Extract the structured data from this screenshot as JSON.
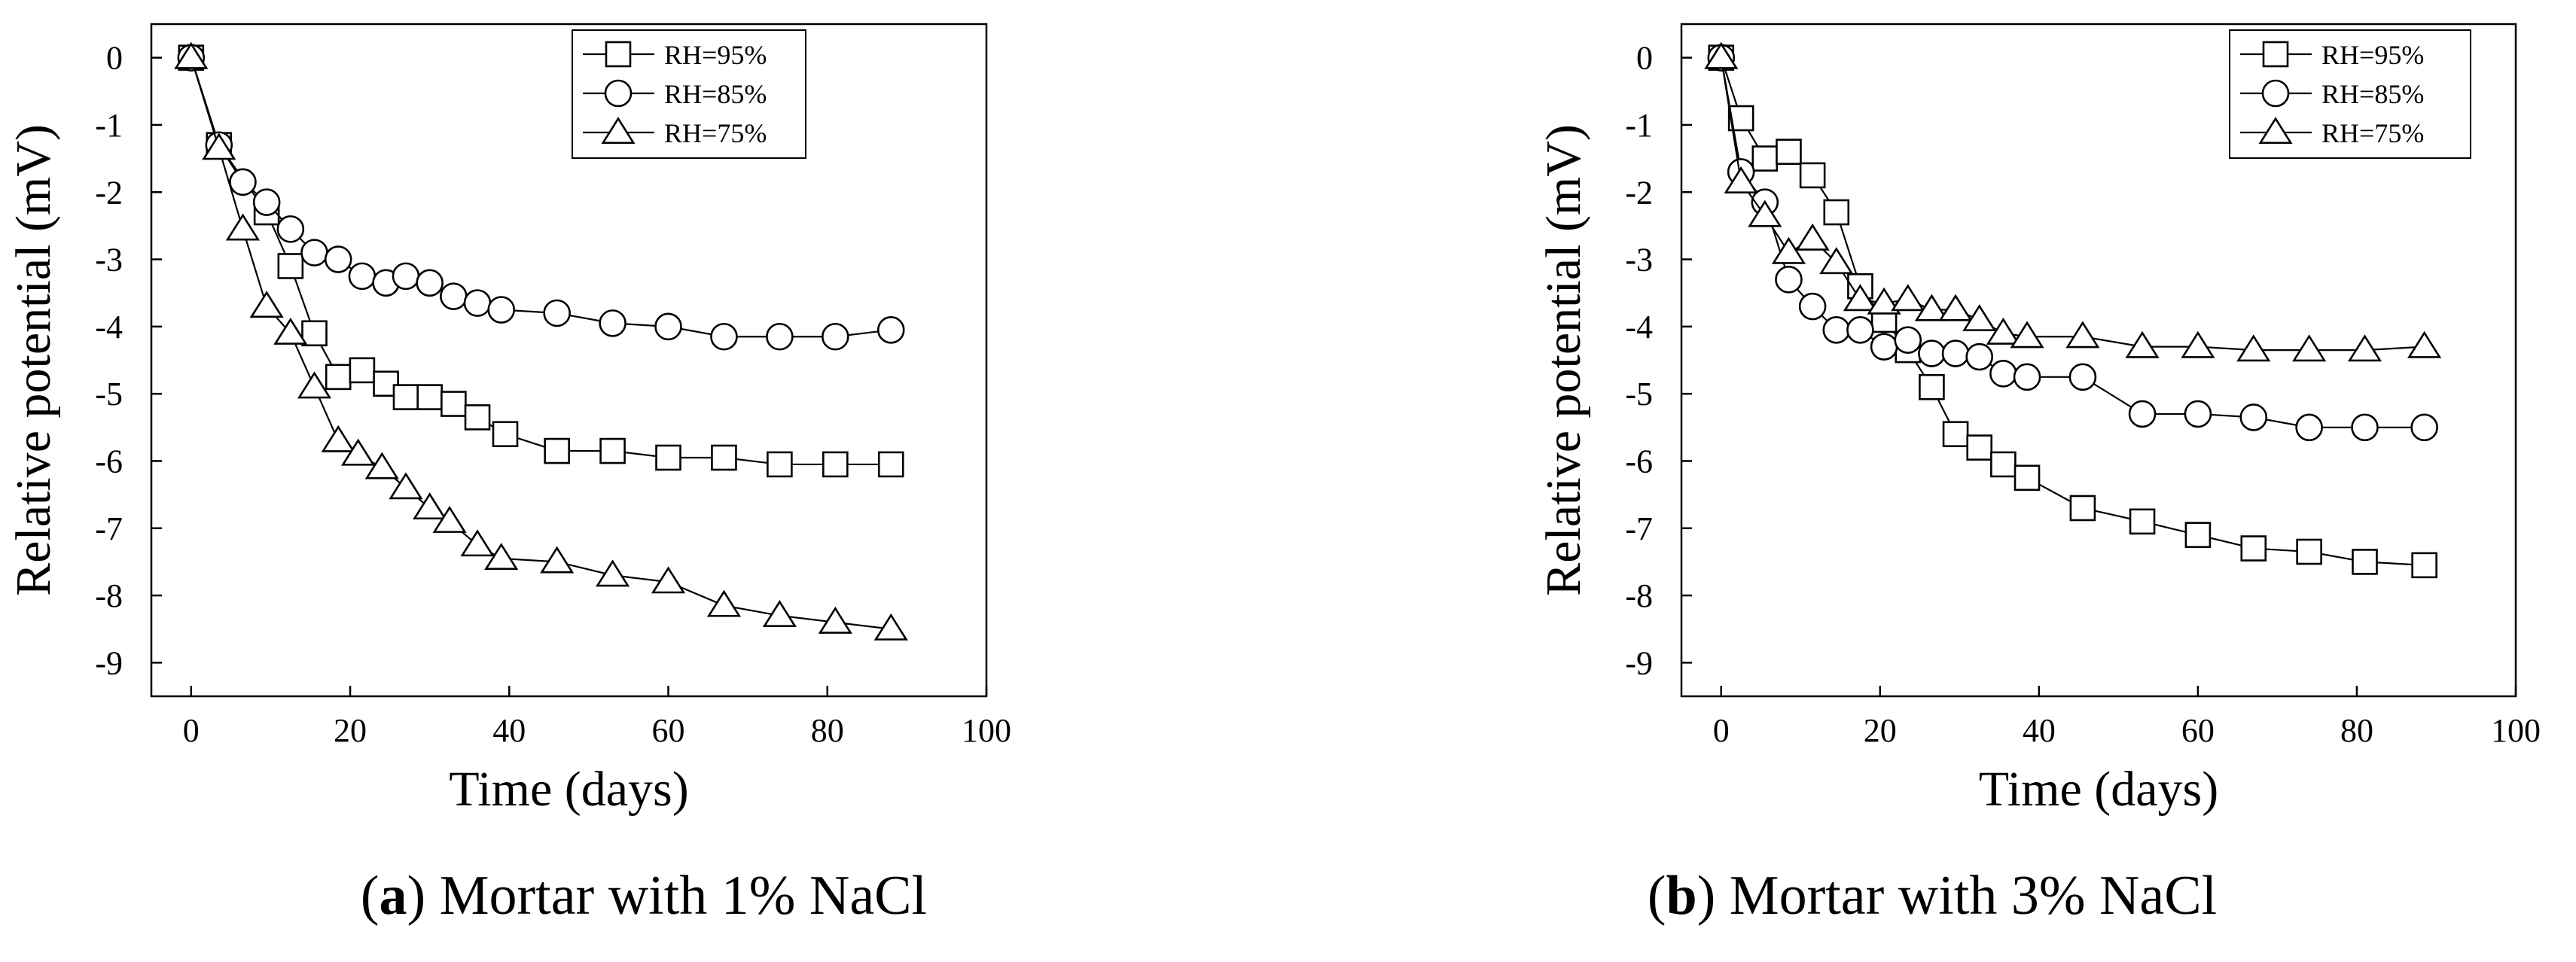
{
  "chart_data": [
    {
      "type": "line",
      "panel_label": "a",
      "caption": "Mortar with 1% NaCl",
      "xlabel": "Time (days)",
      "ylabel": "Relative potential (mV)",
      "xlim": [
        -5,
        100
      ],
      "ylim": [
        -9.5,
        0.5
      ],
      "xticks": [
        0,
        20,
        40,
        60,
        80,
        100
      ],
      "yticks": [
        0,
        -1,
        -2,
        -3,
        -4,
        -5,
        -6,
        -7,
        -8,
        -9
      ],
      "legend_position": "top-right",
      "grid": false,
      "series": [
        {
          "name": "RH=95%",
          "marker": "square",
          "x": [
            0,
            3.5,
            9.5,
            12.5,
            15.5,
            18.5,
            21.5,
            24.5,
            27,
            30,
            33,
            36,
            39.5,
            46,
            53,
            60,
            67,
            74,
            81,
            88
          ],
          "y": [
            0,
            -1.3,
            -2.3,
            -3.1,
            -4.1,
            -4.75,
            -4.65,
            -4.85,
            -5.05,
            -5.05,
            -5.15,
            -5.35,
            -5.6,
            -5.85,
            -5.85,
            -5.95,
            -5.95,
            -6.05,
            -6.05,
            -6.05
          ]
        },
        {
          "name": "RH=85%",
          "marker": "circle",
          "x": [
            0,
            3.5,
            6.5,
            9.5,
            12.5,
            15.5,
            18.5,
            21.5,
            24.5,
            27,
            30,
            33,
            36,
            39,
            46,
            53,
            60,
            67,
            74,
            81,
            88
          ],
          "y": [
            0,
            -1.3,
            -1.85,
            -2.15,
            -2.55,
            -2.9,
            -3.0,
            -3.25,
            -3.35,
            -3.25,
            -3.35,
            -3.55,
            -3.65,
            -3.75,
            -3.8,
            -3.95,
            -4.0,
            -4.15,
            -4.15,
            -4.15,
            -4.05
          ]
        },
        {
          "name": "RH=75%",
          "marker": "triangle",
          "x": [
            0,
            3.5,
            6.5,
            9.5,
            12.5,
            15.5,
            18.5,
            21,
            24,
            27,
            30,
            32.5,
            36,
            39,
            46,
            53,
            60,
            67,
            74,
            81,
            88
          ],
          "y": [
            0,
            -1.35,
            -2.55,
            -3.7,
            -4.1,
            -4.9,
            -5.7,
            -5.9,
            -6.1,
            -6.4,
            -6.7,
            -6.9,
            -7.25,
            -7.45,
            -7.5,
            -7.7,
            -7.8,
            -8.15,
            -8.3,
            -8.4,
            -8.5
          ]
        }
      ]
    },
    {
      "type": "line",
      "panel_label": "b",
      "caption": "Mortar with 3% NaCl",
      "xlabel": "Time (days)",
      "ylabel": "Relative potential (mV)",
      "xlim": [
        -5,
        100
      ],
      "ylim": [
        -9.5,
        0.5
      ],
      "xticks": [
        0,
        20,
        40,
        60,
        80,
        100
      ],
      "yticks": [
        0,
        -1,
        -2,
        -3,
        -4,
        -5,
        -6,
        -7,
        -8,
        -9
      ],
      "legend_position": "top-right",
      "grid": false,
      "series": [
        {
          "name": "RH=95%",
          "marker": "square",
          "x": [
            0,
            2.5,
            5.5,
            8.5,
            11.5,
            14.5,
            17.5,
            20.5,
            23.5,
            26.5,
            29.5,
            32.5,
            35.5,
            38.5,
            45.5,
            53,
            60,
            67,
            74,
            81,
            88.5
          ],
          "y": [
            0,
            -0.9,
            -1.5,
            -1.4,
            -1.75,
            -2.3,
            -3.4,
            -3.9,
            -4.35,
            -4.9,
            -5.6,
            -5.8,
            -6.05,
            -6.25,
            -6.7,
            -6.9,
            -7.1,
            -7.3,
            -7.35,
            -7.5,
            -7.55
          ]
        },
        {
          "name": "RH=85%",
          "marker": "circle",
          "x": [
            0,
            2.5,
            5.5,
            8.5,
            11.5,
            14.5,
            17.5,
            20.5,
            23.5,
            26.5,
            29.5,
            32.5,
            35.5,
            38.5,
            45.5,
            53,
            60,
            67,
            74,
            81,
            88.5
          ],
          "y": [
            0,
            -1.7,
            -2.15,
            -3.3,
            -3.7,
            -4.05,
            -4.05,
            -4.3,
            -4.2,
            -4.4,
            -4.4,
            -4.45,
            -4.7,
            -4.75,
            -4.75,
            -5.3,
            -5.3,
            -5.35,
            -5.5,
            -5.5,
            -5.5
          ]
        },
        {
          "name": "RH=75%",
          "marker": "triangle",
          "x": [
            0,
            2.5,
            5.5,
            8.5,
            11.5,
            14.5,
            17.5,
            20.5,
            23.5,
            26.5,
            29.5,
            32.5,
            35.5,
            38.5,
            45.5,
            53,
            60,
            67,
            74,
            81,
            88.5
          ],
          "y": [
            0,
            -1.85,
            -2.35,
            -2.9,
            -2.7,
            -3.05,
            -3.6,
            -3.65,
            -3.6,
            -3.75,
            -3.75,
            -3.9,
            -4.1,
            -4.15,
            -4.15,
            -4.3,
            -4.3,
            -4.35,
            -4.35,
            -4.35,
            -4.3
          ]
        }
      ]
    }
  ]
}
